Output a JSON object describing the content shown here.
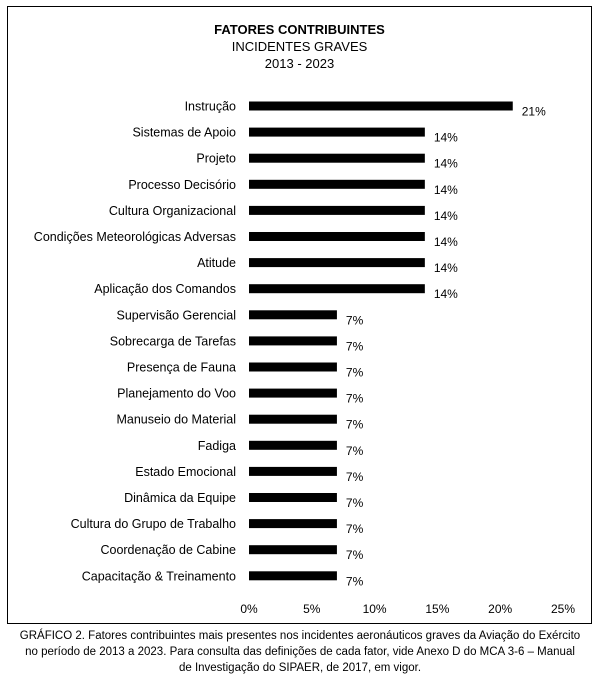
{
  "chart_data": {
    "type": "bar",
    "orientation": "horizontal",
    "title": "FATORES CONTRIBUINTES",
    "subtitle": "INCIDENTES GRAVES",
    "period": "2013 - 2023",
    "categories": [
      "Instrução",
      "Sistemas de Apoio",
      "Projeto",
      "Processo Decisório",
      "Cultura Organizacional",
      "Condições Meteorológicas Adversas",
      "Atitude",
      "Aplicação dos Comandos",
      "Supervisão Gerencial",
      "Sobrecarga de Tarefas",
      "Presença de Fauna",
      "Planejamento do Voo",
      "Manuseio do Material",
      "Fadiga",
      "Estado Emocional",
      "Dinâmica da Equipe",
      "Cultura do Grupo de Trabalho",
      "Coordenação de Cabine",
      "Capacitação & Treinamento"
    ],
    "values": [
      21,
      14,
      14,
      14,
      14,
      14,
      14,
      14,
      7,
      7,
      7,
      7,
      7,
      7,
      7,
      7,
      7,
      7,
      7
    ],
    "value_labels": [
      "21%",
      "14%",
      "14%",
      "14%",
      "14%",
      "14%",
      "14%",
      "14%",
      "7%",
      "7%",
      "7%",
      "7%",
      "7%",
      "7%",
      "7%",
      "7%",
      "7%",
      "7%",
      "7%"
    ],
    "xlim": [
      0,
      25
    ],
    "xticks": [
      0,
      5,
      10,
      15,
      20,
      25
    ],
    "xtick_labels": [
      "0%",
      "5%",
      "10%",
      "15%",
      "20%",
      "25%"
    ],
    "grid": false,
    "legend": "none",
    "bar_color": "#000000"
  },
  "caption": {
    "line1": "GRÁFICO 2. Fatores contribuintes mais presentes nos incidentes aeronáuticos graves da Aviação do Exército",
    "line2": "no período de 2013 a 2023. Para consulta das definições de cada fator, vide Anexo D do MCA 3-6 – Manual",
    "line3": "de Investigação do SIPAER, de 2017, em vigor."
  }
}
